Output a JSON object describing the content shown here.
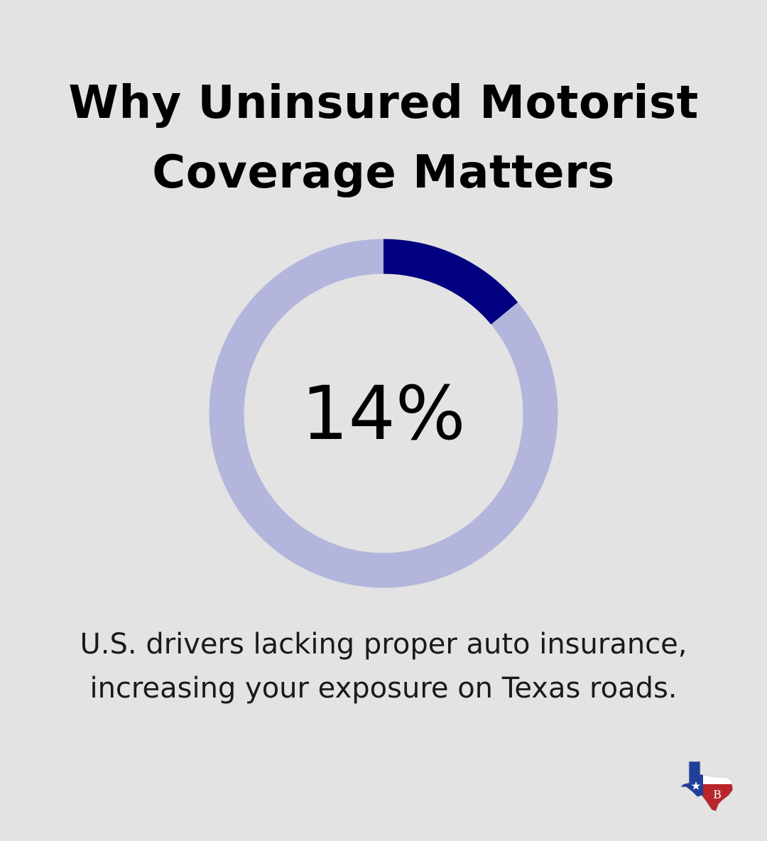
{
  "title": {
    "line1": "Why Uninsured Motorist",
    "line2": "Coverage Matters"
  },
  "chart_data": {
    "type": "pie",
    "values": [
      14,
      86
    ],
    "center_label": "14%",
    "colors": {
      "value": "#000080",
      "remainder": "#b3b5dc"
    }
  },
  "caption": {
    "line1": "U.S. drivers lacking proper auto insurance,",
    "line2": "increasing your exposure on Texas roads."
  },
  "logo": {
    "icon": "texas-flag-map-icon",
    "monogram": "B"
  }
}
